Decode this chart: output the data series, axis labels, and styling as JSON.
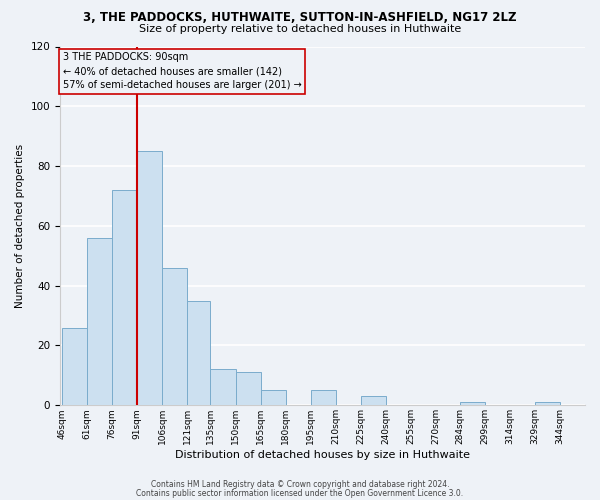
{
  "title": "3, THE PADDOCKS, HUTHWAITE, SUTTON-IN-ASHFIELD, NG17 2LZ",
  "subtitle": "Size of property relative to detached houses in Huthwaite",
  "xlabel": "Distribution of detached houses by size in Huthwaite",
  "ylabel": "Number of detached properties",
  "bar_color": "#cce0f0",
  "bar_edge_color": "#7aaccc",
  "annotation_line_color": "#cc0000",
  "annotation_box_color": "#cc0000",
  "bins": [
    46,
    61,
    76,
    91,
    106,
    121,
    135,
    150,
    165,
    180,
    195,
    210,
    225,
    240,
    255,
    270,
    284,
    299,
    314,
    329,
    344
  ],
  "counts": [
    26,
    56,
    72,
    85,
    46,
    35,
    12,
    11,
    5,
    0,
    5,
    0,
    3,
    0,
    0,
    0,
    1,
    0,
    0,
    1,
    0
  ],
  "tick_labels": [
    "46sqm",
    "61sqm",
    "76sqm",
    "91sqm",
    "106sqm",
    "121sqm",
    "135sqm",
    "150sqm",
    "165sqm",
    "180sqm",
    "195sqm",
    "210sqm",
    "225sqm",
    "240sqm",
    "255sqm",
    "270sqm",
    "284sqm",
    "299sqm",
    "314sqm",
    "329sqm",
    "344sqm"
  ],
  "property_line_x": 91,
  "annotation_text_line1": "3 THE PADDOCKS: 90sqm",
  "annotation_text_line2": "← 40% of detached houses are smaller (142)",
  "annotation_text_line3": "57% of semi-detached houses are larger (201) →",
  "ylim": [
    0,
    120
  ],
  "yticks": [
    0,
    20,
    40,
    60,
    80,
    100,
    120
  ],
  "footer_line1": "Contains HM Land Registry data © Crown copyright and database right 2024.",
  "footer_line2": "Contains public sector information licensed under the Open Government Licence 3.0.",
  "background_color": "#eef2f7"
}
